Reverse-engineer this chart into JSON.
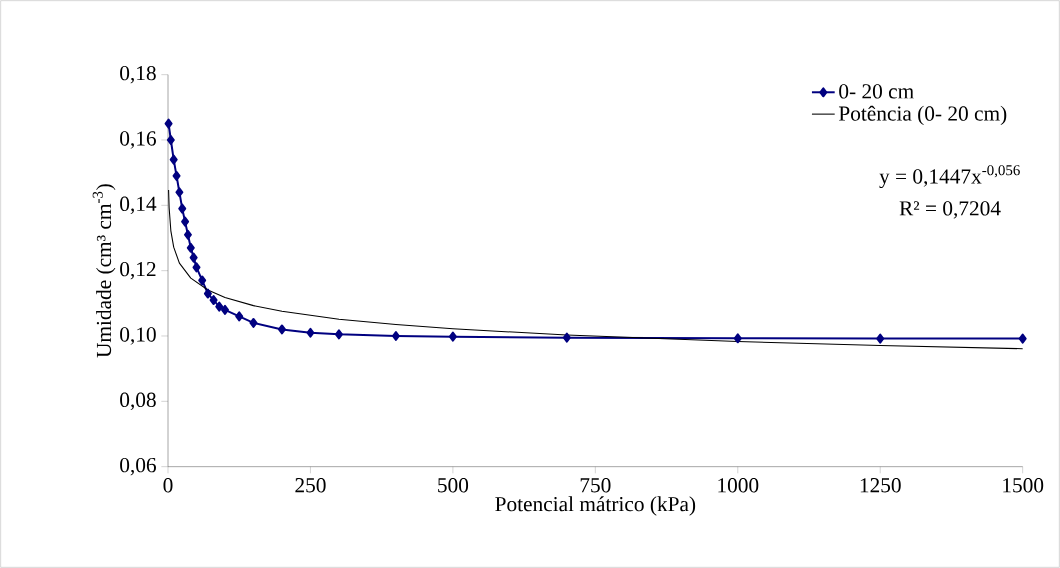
{
  "chart_data": {
    "type": "line",
    "xlabel": "Potencial mátrico (kPa)",
    "ylabel": "Umidade (cm³ cm$^{-3}$)",
    "xlim": [
      0,
      1500
    ],
    "xticks": [
      0,
      250,
      500,
      750,
      1000,
      1250,
      1500
    ],
    "ylim": [
      0.06,
      0.18
    ],
    "yticks": [
      {
        "value": 0.06,
        "label": "0,06"
      },
      {
        "value": 0.08,
        "label": "0,08"
      },
      {
        "value": 0.1,
        "label": "0,10"
      },
      {
        "value": 0.12,
        "label": "0,12"
      },
      {
        "value": 0.14,
        "label": "0,14"
      },
      {
        "value": 0.16,
        "label": "0,16"
      },
      {
        "value": 0.18,
        "label": "0,18"
      }
    ],
    "grid": false,
    "legend": "top right",
    "annotations": [
      "y = 0,1447x$^{-0,056}$",
      "R² = 0,7204"
    ],
    "series": [
      {
        "name": "0- 20 cm",
        "color": "#000080",
        "marker": "diamond",
        "x": [
          1,
          5,
          10,
          15,
          20,
          25,
          30,
          35,
          40,
          45,
          50,
          60,
          70,
          80,
          90,
          100,
          125,
          150,
          200,
          250,
          300,
          400,
          500,
          700,
          1000,
          1250,
          1500
        ],
        "values": [
          0.165,
          0.16,
          0.154,
          0.149,
          0.144,
          0.139,
          0.135,
          0.131,
          0.127,
          0.124,
          0.121,
          0.117,
          0.113,
          0.111,
          0.109,
          0.108,
          0.106,
          0.104,
          0.102,
          0.101,
          0.1005,
          0.1,
          0.0998,
          0.0995,
          0.0993,
          0.0992,
          0.0992
        ]
      },
      {
        "name": "Potência (0- 20 cm)",
        "color": "#000000",
        "marker": "none",
        "x": [
          1,
          2,
          5,
          10,
          20,
          40,
          70,
          100,
          150,
          200,
          300,
          400,
          500,
          700,
          1000,
          1250,
          1500
        ],
        "values": [
          0.1447,
          0.1392,
          0.1322,
          0.1272,
          0.1223,
          0.1177,
          0.1141,
          0.1118,
          0.1093,
          0.1076,
          0.1051,
          0.1035,
          0.1022,
          0.1003,
          0.0983,
          0.0971,
          0.0961
        ]
      }
    ]
  }
}
